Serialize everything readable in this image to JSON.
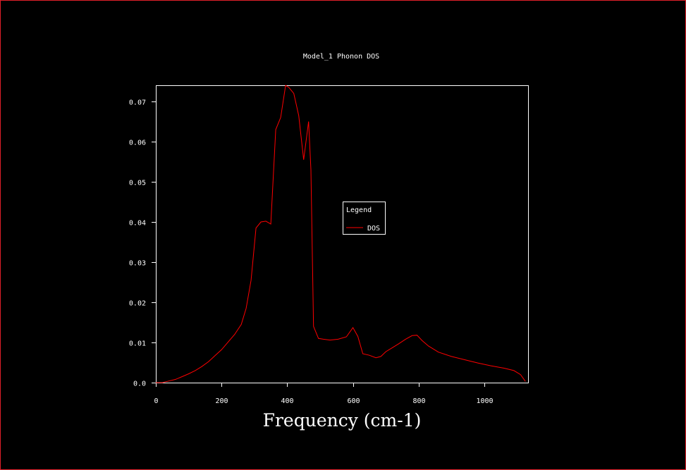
{
  "colors": {
    "background": "#000000",
    "window_border": "#e0202a",
    "axes": "#ffffff",
    "series": "#ff0000"
  },
  "chart_data": {
    "type": "line",
    "title": "Model_1 Phonon DOS",
    "xlabel": "Frequency (cm-1)",
    "ylabel": "",
    "xlim": [
      0,
      1140
    ],
    "ylim": [
      0,
      0.074
    ],
    "xticks": [
      0,
      200,
      400,
      600,
      800,
      1000
    ],
    "yticks": [
      0.0,
      0.01,
      0.02,
      0.03,
      0.04,
      0.05,
      0.06,
      0.07
    ],
    "xtick_labels": [
      "0",
      "200",
      "400",
      "600",
      "800",
      "1000"
    ],
    "ytick_labels": [
      "0.0",
      "0.01",
      "0.02",
      "0.03",
      "0.04",
      "0.05",
      "0.06",
      "0.07"
    ],
    "grid": false,
    "legend": {
      "title": "Legend",
      "placement": "center-right",
      "entries": [
        "DOS"
      ]
    },
    "series": [
      {
        "name": "DOS",
        "color": "#ff0000",
        "x": [
          0,
          20,
          40,
          60,
          80,
          100,
          120,
          140,
          160,
          180,
          200,
          220,
          240,
          260,
          275,
          290,
          305,
          320,
          335,
          350,
          365,
          380,
          395,
          405,
          420,
          435,
          450,
          465,
          472,
          480,
          495,
          510,
          530,
          555,
          580,
          600,
          615,
          630,
          650,
          670,
          685,
          700,
          720,
          740,
          760,
          780,
          795,
          810,
          830,
          860,
          900,
          940,
          980,
          1020,
          1060,
          1090,
          1110,
          1125
        ],
        "y": [
          0.0,
          0.0,
          0.0004,
          0.0008,
          0.0015,
          0.0022,
          0.003,
          0.004,
          0.0052,
          0.0067,
          0.0082,
          0.0101,
          0.012,
          0.0145,
          0.0185,
          0.0255,
          0.0385,
          0.04,
          0.0402,
          0.0395,
          0.063,
          0.066,
          0.074,
          0.0735,
          0.072,
          0.0665,
          0.0555,
          0.065,
          0.053,
          0.014,
          0.011,
          0.0108,
          0.0106,
          0.0108,
          0.0114,
          0.0137,
          0.0115,
          0.0072,
          0.0068,
          0.0062,
          0.0065,
          0.0077,
          0.0087,
          0.0097,
          0.0108,
          0.0117,
          0.0118,
          0.0105,
          0.0091,
          0.0076,
          0.0065,
          0.0057,
          0.0049,
          0.0042,
          0.0036,
          0.003,
          0.002,
          0.0003
        ]
      }
    ]
  }
}
